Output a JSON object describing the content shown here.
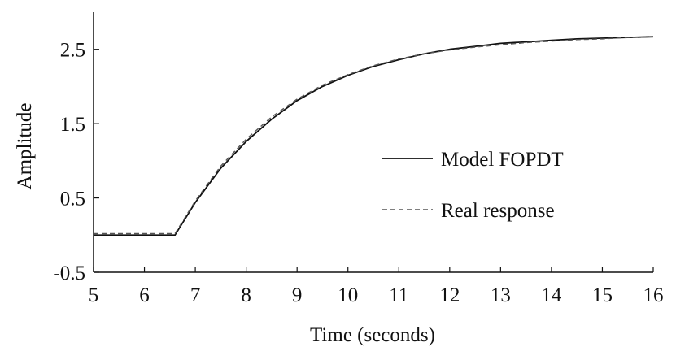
{
  "chart_data": {
    "type": "line",
    "title": "",
    "xlabel": "Time (seconds)",
    "ylabel": "Amplitude",
    "xlim": [
      5,
      16
    ],
    "ylim": [
      -0.5,
      3.0
    ],
    "x_ticks": [
      5,
      6,
      7,
      8,
      9,
      10,
      11,
      12,
      13,
      14,
      15,
      16
    ],
    "x_tick_labels": [
      "5",
      "6",
      "7",
      "8",
      "9",
      "10",
      "11",
      "12",
      "13",
      "14",
      "15",
      "16"
    ],
    "y_ticks": [
      -0.5,
      0.5,
      1.5,
      2.5
    ],
    "y_tick_labels": [
      "-0.5",
      "0.5",
      "1.5",
      "2.5"
    ],
    "grid": false,
    "legend_position": "center-right",
    "series": [
      {
        "name": "Model FOPDT",
        "style": "solid",
        "color": "#111111",
        "x": [
          5.0,
          6.0,
          6.6,
          7.0,
          7.5,
          8.0,
          8.5,
          9.0,
          9.5,
          10.0,
          10.5,
          11.0,
          11.5,
          12.0,
          12.5,
          13.0,
          13.5,
          14.0,
          14.5,
          15.0,
          15.5,
          16.0
        ],
        "y": [
          0.0,
          0.0,
          0.0,
          0.44,
          0.9,
          1.26,
          1.56,
          1.81,
          2.0,
          2.15,
          2.27,
          2.36,
          2.44,
          2.5,
          2.54,
          2.58,
          2.6,
          2.62,
          2.64,
          2.65,
          2.66,
          2.67
        ]
      },
      {
        "name": "Real response",
        "style": "dashed",
        "color": "#555555",
        "x": [
          5.0,
          6.0,
          6.6,
          7.0,
          7.5,
          8.0,
          8.5,
          9.0,
          9.5,
          10.0,
          10.5,
          11.0,
          11.5,
          12.0,
          12.5,
          13.0,
          13.5,
          14.0,
          14.5,
          15.0,
          15.5,
          16.0
        ],
        "y": [
          0.02,
          0.02,
          0.02,
          0.46,
          0.93,
          1.29,
          1.59,
          1.83,
          2.02,
          2.16,
          2.28,
          2.37,
          2.44,
          2.49,
          2.53,
          2.56,
          2.59,
          2.61,
          2.63,
          2.64,
          2.66,
          2.67
        ]
      }
    ]
  }
}
